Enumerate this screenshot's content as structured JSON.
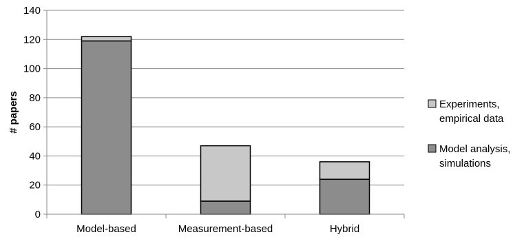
{
  "chart_data": {
    "type": "bar",
    "stacked": true,
    "title": "",
    "xlabel": "",
    "ylabel": "# papers",
    "ylim": [
      0,
      140
    ],
    "yticks": [
      0,
      20,
      40,
      60,
      80,
      100,
      120,
      140
    ],
    "categories": [
      "Model-based",
      "Measurement-based",
      "Hybrid"
    ],
    "series": [
      {
        "name": "Model analysis, simulations",
        "legend_lines": [
          "Model analysis,",
          "simulations"
        ],
        "color": "#8c8c8c",
        "values": [
          119,
          9,
          24
        ]
      },
      {
        "name": "Experiments, empirical data",
        "legend_lines": [
          "Experiments,",
          "empirical data"
        ],
        "color": "#c8c8c8",
        "values": [
          3,
          38,
          12
        ]
      }
    ],
    "grid": true,
    "legend_position": "right"
  }
}
